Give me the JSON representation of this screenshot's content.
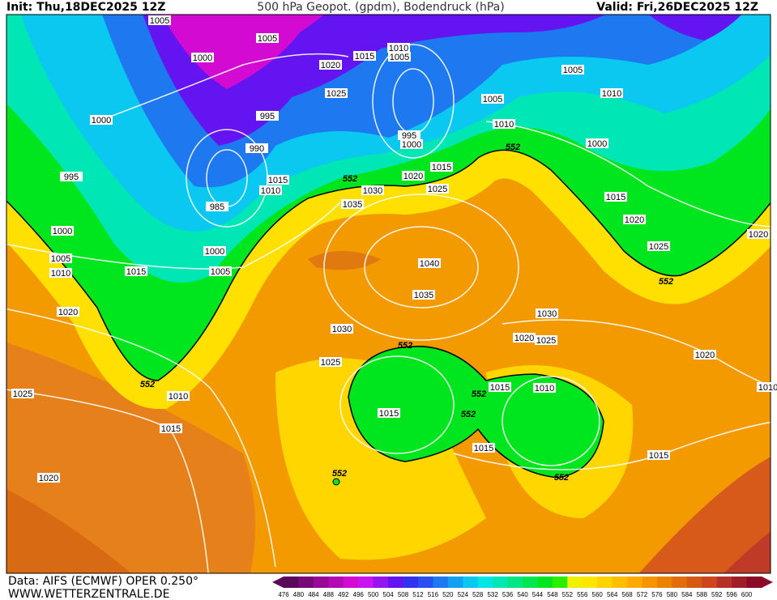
{
  "header": {
    "init": "Init: Thu,18DEC2025 12Z",
    "title": "500 hPa Geopot. (gpdm), Bodendruck (hPa)",
    "valid": "Valid: Fri,26DEC2025 12Z"
  },
  "footer": {
    "source": "Data: AIFS (ECMWF) OPER 0.250°",
    "website": "WWW.WETTERZENTRALE.DE"
  },
  "isobar_labels": [
    1005,
    1005,
    1000,
    1020,
    1015,
    1010,
    1005,
    1025,
    1005,
    1010,
    1005,
    1000,
    995,
    990,
    995,
    1000,
    1010,
    1000,
    995,
    1015,
    1010,
    1020,
    1015,
    1030,
    1025,
    1015,
    985,
    1035,
    1020,
    1000,
    1005,
    1010,
    1015,
    1000,
    1005,
    1040,
    1025,
    1020,
    1035,
    1030,
    1020,
    1030,
    1020,
    1025,
    1025,
    1020,
    1025,
    1010,
    1015,
    1010,
    1015,
    1015,
    1015,
    1015,
    1020,
    1010
  ],
  "height_labels": [
    552,
    552,
    552,
    552,
    552,
    552,
    552,
    552,
    552
  ],
  "colorbar": {
    "levels": [
      476,
      480,
      484,
      488,
      492,
      496,
      500,
      504,
      508,
      512,
      516,
      520,
      524,
      528,
      532,
      536,
      540,
      544,
      548,
      552,
      556,
      560,
      564,
      568,
      572,
      576,
      580,
      584,
      588,
      592,
      596,
      600
    ],
    "colors": [
      "#5a0a5a",
      "#780a78",
      "#960a96",
      "#b40ab4",
      "#d20ad2",
      "#c814f0",
      "#9614f0",
      "#6414f0",
      "#3232f0",
      "#2850f0",
      "#1e78f0",
      "#14a0f0",
      "#0ac8f0",
      "#00e6e6",
      "#00e6b4",
      "#00e682",
      "#00e650",
      "#00e61e",
      "#28f000",
      "#f0f000",
      "#ffe600",
      "#ffd200",
      "#ffbe00",
      "#ffaa00",
      "#f59600",
      "#eb8200",
      "#e16e0a",
      "#d75a14",
      "#cd461e",
      "#b43228",
      "#a01e28",
      "#8c0a28"
    ]
  }
}
